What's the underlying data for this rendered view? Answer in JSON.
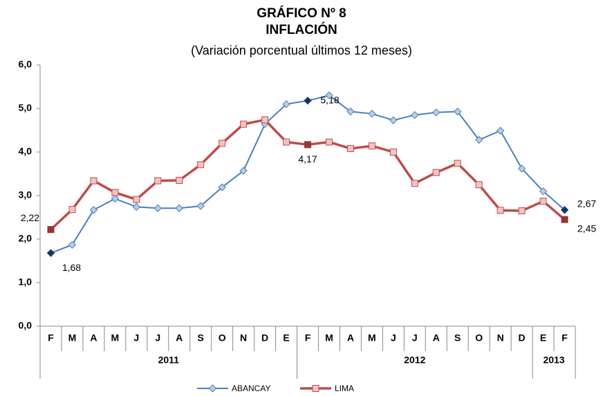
{
  "chart_data": {
    "type": "line",
    "title": [
      "GRÁFICO Nº 8",
      "INFLACIÓN"
    ],
    "subtitle": "(Variación porcentual últimos 12 meses)",
    "categories": [
      "F",
      "M",
      "A",
      "M",
      "J",
      "J",
      "A",
      "S",
      "O",
      "N",
      "D",
      "E",
      "F",
      "M",
      "A",
      "M",
      "J",
      "J",
      "A",
      "S",
      "O",
      "N",
      "D",
      "E",
      "F"
    ],
    "x_groups": [
      {
        "label": "2011",
        "span": 12
      },
      {
        "label": "2012",
        "span": 11
      },
      {
        "label": "2013",
        "span": 2
      }
    ],
    "series": [
      {
        "name": "ABANCAY",
        "color": "#4a7ebb",
        "marker": "diamond",
        "values": [
          1.68,
          1.87,
          2.67,
          2.93,
          2.74,
          2.71,
          2.71,
          2.76,
          3.19,
          3.57,
          4.64,
          5.1,
          5.18,
          5.3,
          4.93,
          4.88,
          4.73,
          4.85,
          4.91,
          4.93,
          4.28,
          4.49,
          3.62,
          3.1,
          2.67
        ],
        "value_labels": [
          "1,68",
          null,
          null,
          null,
          null,
          null,
          null,
          null,
          null,
          null,
          null,
          null,
          "5,18",
          null,
          null,
          null,
          null,
          null,
          null,
          null,
          null,
          null,
          null,
          null,
          "2,67"
        ]
      },
      {
        "name": "LIMA",
        "color": "#be4b48",
        "marker": "square",
        "values": [
          2.22,
          2.68,
          3.34,
          3.07,
          2.91,
          3.34,
          3.35,
          3.71,
          4.2,
          4.64,
          4.74,
          4.23,
          4.17,
          4.23,
          4.08,
          4.14,
          4.0,
          3.28,
          3.53,
          3.74,
          3.25,
          2.66,
          2.65,
          2.87,
          2.45
        ],
        "value_labels": [
          "2,22",
          null,
          null,
          null,
          null,
          null,
          null,
          null,
          null,
          null,
          null,
          null,
          "4,17",
          null,
          null,
          null,
          null,
          null,
          null,
          null,
          null,
          null,
          null,
          null,
          "2,45"
        ]
      }
    ],
    "ylim": [
      0,
      6
    ],
    "yticks": [
      {
        "value": 0,
        "label": "0,0"
      },
      {
        "value": 1,
        "label": "1,0"
      },
      {
        "value": 2,
        "label": "2,0"
      },
      {
        "value": 3,
        "label": "3,0"
      },
      {
        "value": 4,
        "label": "4,0"
      },
      {
        "value": 5,
        "label": "5,0"
      },
      {
        "value": 6,
        "label": "6,0"
      }
    ],
    "legend": "bottom"
  }
}
